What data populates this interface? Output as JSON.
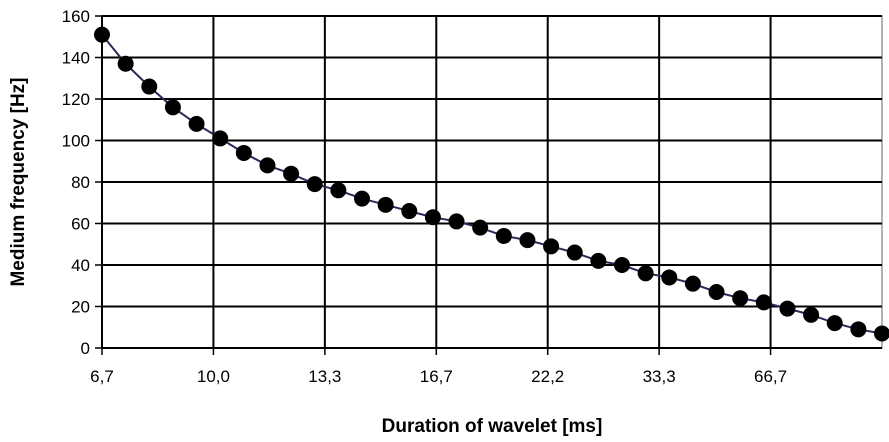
{
  "chart_data": {
    "type": "line",
    "xlabel": "Duration of wavelet [ms]",
    "ylabel": "Medium frequency [Hz]",
    "x_tick_labels": [
      "6,7",
      "10,0",
      "13,3",
      "16,7",
      "22,2",
      "33,3",
      "66,7"
    ],
    "y_ticks": [
      0,
      20,
      40,
      60,
      80,
      100,
      120,
      140,
      160
    ],
    "ylim": [
      0,
      160
    ],
    "grid": true,
    "legend": "none",
    "marker": "circle",
    "line_color": "#2a2a5a",
    "marker_color": "#000000",
    "series": [
      {
        "values": [
          151,
          137,
          126,
          116,
          108,
          101,
          94,
          88,
          84,
          79,
          76,
          72,
          69,
          66,
          63,
          61,
          58,
          54,
          52,
          49,
          46,
          42,
          40,
          36,
          34,
          31,
          27,
          24,
          22,
          19,
          16,
          12,
          9,
          7
        ]
      }
    ]
  }
}
